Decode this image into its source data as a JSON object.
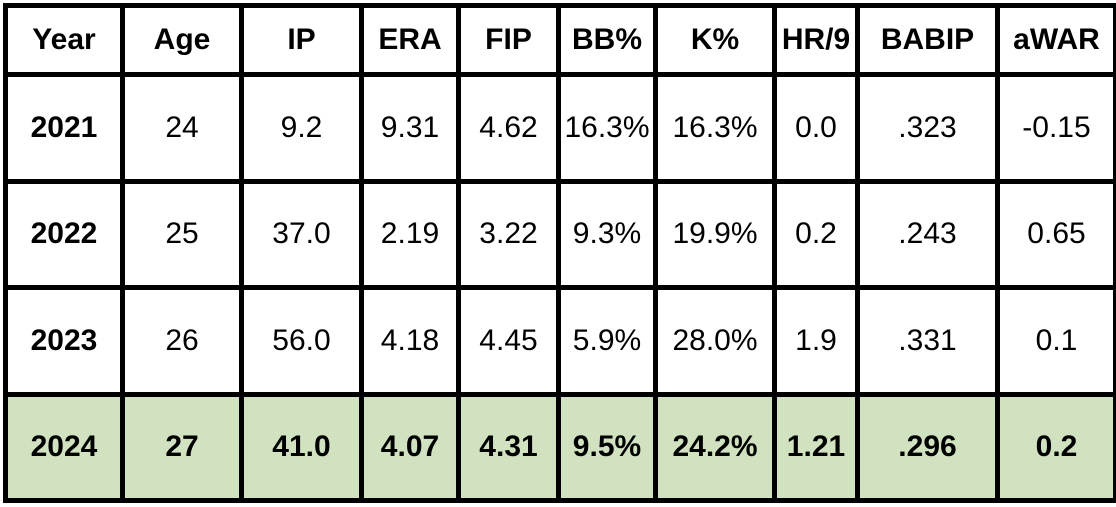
{
  "table": {
    "columns": [
      "Year",
      "Age",
      "IP",
      "ERA",
      "FIP",
      "BB%",
      "K%",
      "HR/9",
      "BABIP",
      "aWAR"
    ],
    "rows": [
      [
        "2021",
        "24",
        "9.2",
        "9.31",
        "4.62",
        "16.3%",
        "16.3%",
        "0.0",
        ".323",
        "-0.15"
      ],
      [
        "2022",
        "25",
        "37.0",
        "2.19",
        "3.22",
        "9.3%",
        "19.9%",
        "0.2",
        ".243",
        "0.65"
      ],
      [
        "2023",
        "26",
        "56.0",
        "4.18",
        "4.45",
        "5.9%",
        "28.0%",
        "1.9",
        ".331",
        "0.1"
      ],
      [
        "2024",
        "27",
        "41.0",
        "4.07",
        "4.31",
        "9.5%",
        "24.2%",
        "1.21",
        ".296",
        "0.2"
      ]
    ],
    "highlight_row_index": 3,
    "colors": {
      "border": "#000000",
      "highlight_fill": "#d0e2c0",
      "background": "#ffffff"
    }
  }
}
